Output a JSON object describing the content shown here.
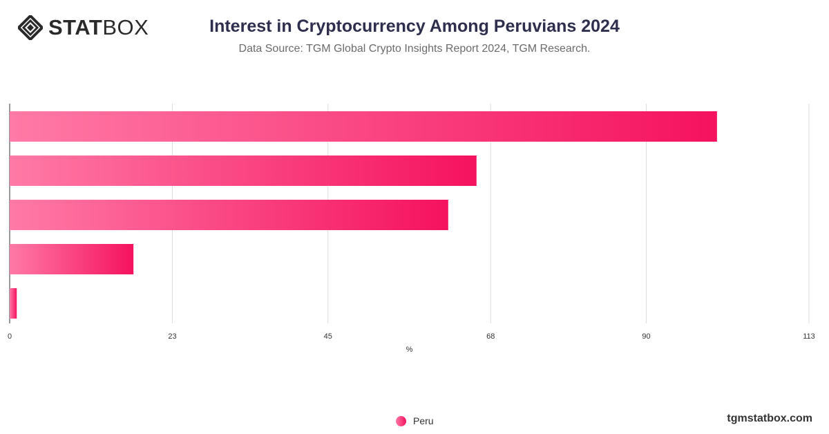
{
  "header": {
    "logo_text_bold": "STAT",
    "logo_text_light": "BOX",
    "title": "Interest in Cryptocurrency Among Peruvians 2024",
    "subtitle": "Data Source: TGM Global Crypto Insights Report 2024, TGM Research."
  },
  "footer": {
    "site": "tgmstatbox.com"
  },
  "colors": {
    "bar_start": "#ff7aa6",
    "bar_end": "#f5125f",
    "grid": "#dddddd",
    "axis": "#333333",
    "text": "#2e2e4f"
  },
  "chart_data": {
    "type": "bar",
    "orientation": "horizontal",
    "categories": [
      "",
      "",
      "",
      "",
      ""
    ],
    "series": [
      {
        "name": "Peru",
        "values": [
          100,
          66,
          62,
          17.5,
          1
        ]
      }
    ],
    "xlabel": "%",
    "ylabel": "",
    "xlim": [
      0,
      113
    ],
    "ticks": [
      0,
      23,
      45,
      68,
      90,
      113
    ],
    "grid": true,
    "legend": "bottom-center"
  }
}
